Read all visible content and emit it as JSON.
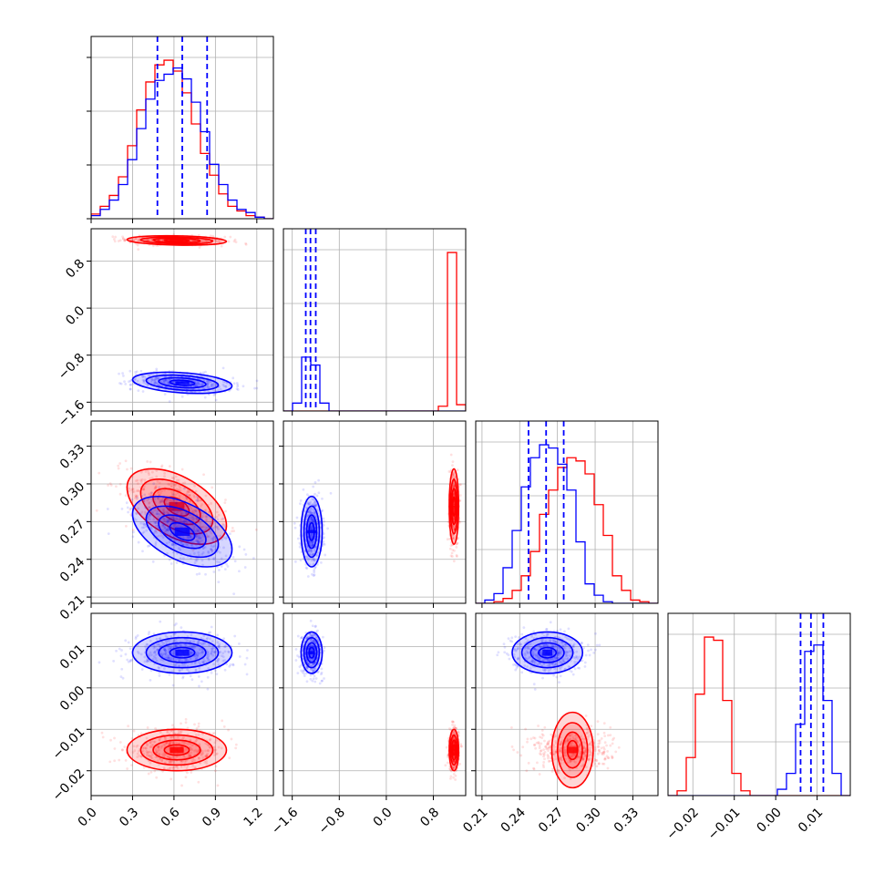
{
  "chart_data": {
    "type": "corner",
    "grid": true,
    "colors": {
      "blue": "#0000ff",
      "red": "#ff0000"
    },
    "series": [
      {
        "color": "#0000ff",
        "means": [
          0.66,
          -1.27,
          0.262,
          0.0085
        ],
        "sigmas": [
          0.18,
          0.09,
          0.014,
          0.0025
        ],
        "quantiles_dashed": {
          "p0": [
            0.48,
            0.66,
            0.84
          ],
          "p1": [
            -1.37,
            -1.29,
            -1.2
          ],
          "p2": [
            0.247,
            0.261,
            0.275
          ],
          "p3": [
            0.006,
            0.0085,
            0.0115
          ]
        },
        "correlations": {
          "p0_p1": -0.3,
          "p0_p2": -0.5
        }
      },
      {
        "color": "#ff0000",
        "means": [
          0.62,
          1.15,
          0.282,
          -0.015
        ],
        "sigmas": [
          0.18,
          0.04,
          0.015,
          0.0025
        ],
        "correlations": {
          "p0_p1": -0.2,
          "p0_p2": -0.5
        }
      }
    ],
    "params": [
      {
        "range": [
          0.0,
          1.32
        ],
        "ticks": [
          0.0,
          0.3,
          0.6,
          0.9,
          1.2
        ],
        "tick_labels": [
          "0.0",
          "0.3",
          "0.6",
          "0.9",
          "1.2"
        ],
        "hist": {
          "bin_edges": [
            0.0,
            0.066,
            0.132,
            0.198,
            0.264,
            0.33,
            0.396,
            0.462,
            0.528,
            0.594,
            0.66,
            0.726,
            0.792,
            0.858,
            0.924,
            0.99,
            1.056,
            1.122,
            1.188,
            1.254,
            1.32
          ],
          "blue": [
            2,
            6,
            12,
            22,
            38,
            58,
            77,
            89,
            93,
            97,
            90,
            75,
            56,
            35,
            22,
            12,
            6,
            4,
            1,
            0
          ],
          "red": [
            3,
            8,
            15,
            27,
            47,
            70,
            88,
            99,
            102,
            95,
            81,
            61,
            42,
            28,
            16,
            8,
            5,
            2,
            1,
            0
          ]
        }
      },
      {
        "range": [
          -1.75,
          1.35
        ],
        "ticks": [
          -1.6,
          -0.8,
          0.0,
          0.8
        ],
        "tick_labels": [
          "−1.6",
          "−0.8",
          "0.0",
          "0.8"
        ],
        "hist": {
          "bin_edges": [
            -1.75,
            -1.595,
            -1.44,
            -1.285,
            -1.13,
            -0.975,
            -0.82,
            -0.665,
            -0.51,
            -0.355,
            -0.2,
            -0.045,
            0.11,
            0.265,
            0.42,
            0.575,
            0.73,
            0.885,
            1.04,
            1.195,
            1.35
          ],
          "blue": [
            0,
            5,
            34,
            29,
            5,
            0,
            0,
            0,
            0,
            0,
            0,
            0,
            0,
            0,
            0,
            0,
            0,
            0,
            0,
            0
          ],
          "red": [
            0,
            0,
            0,
            0,
            0,
            0,
            0,
            0,
            0,
            0,
            0,
            0,
            0,
            0,
            0,
            0,
            0,
            3,
            100,
            4
          ]
        }
      },
      {
        "range": [
          0.205,
          0.35
        ],
        "ticks": [
          0.21,
          0.24,
          0.27,
          0.3,
          0.33
        ],
        "tick_labels": [
          "0.21",
          "0.24",
          "0.27",
          "0.30",
          "0.33"
        ],
        "hist": {
          "bin_edges": [
            0.205,
            0.21225,
            0.2195,
            0.22675,
            0.234,
            0.24125,
            0.2485,
            0.25575,
            0.263,
            0.27025,
            0.2775,
            0.28475,
            0.292,
            0.29925,
            0.3065,
            0.31375,
            0.321,
            0.32825,
            0.3355,
            0.34275,
            0.35
          ],
          "blue": [
            0,
            2,
            6,
            22,
            45,
            72,
            90,
            98,
            96,
            86,
            70,
            38,
            12,
            5,
            1,
            0,
            0,
            0,
            0,
            0
          ],
          "red": [
            0,
            0,
            1,
            3,
            8,
            17,
            32,
            55,
            70,
            84,
            90,
            88,
            80,
            61,
            42,
            17,
            8,
            2,
            1,
            0
          ]
        }
      },
      {
        "range": [
          -0.026,
          0.018
        ],
        "ticks": [
          -0.02,
          -0.01,
          0.0,
          0.01
        ],
        "tick_labels": [
          "−0.02",
          "−0.01",
          "0.00",
          "0.01"
        ],
        "hist": {
          "bin_edges": [
            -0.026,
            -0.0238,
            -0.0216,
            -0.0194,
            -0.0172,
            -0.015,
            -0.0128,
            -0.0106,
            -0.0084,
            -0.0062,
            -0.004,
            -0.0018,
            0.0004,
            0.0026,
            0.0048,
            0.007,
            0.0092,
            0.0114,
            0.0136,
            0.0158,
            0.018
          ],
          "blue": [
            0,
            0,
            0,
            0,
            0,
            0,
            0,
            0,
            0,
            0,
            0,
            0,
            4,
            14,
            45,
            91,
            95,
            60,
            14,
            0
          ],
          "red": [
            0,
            3,
            24,
            64,
            100,
            98,
            60,
            14,
            3,
            0,
            0,
            0,
            0,
            0,
            0,
            0,
            0,
            0,
            0,
            0
          ]
        }
      }
    ]
  }
}
